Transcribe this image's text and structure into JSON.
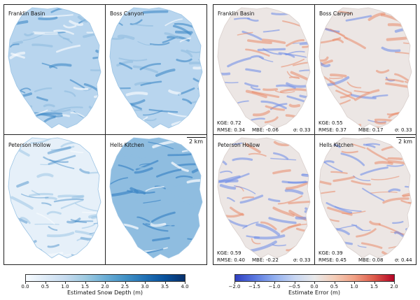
{
  "chart_data": {
    "type": "heatmap",
    "layout": "two groups of 2x2 raster map panels",
    "groups": [
      {
        "name": "depth",
        "panels": [
          {
            "title": "Franklin Basin"
          },
          {
            "title": "Boss Canyon"
          },
          {
            "title": "Peterson Hollow"
          },
          {
            "title": "Hells Kitchen"
          }
        ],
        "scale_label": "2 km",
        "colorbar": {
          "label": "Estimated Snow Depth (m)",
          "range": [
            0.0,
            4.0
          ],
          "ticks": [
            "0.0",
            "0.5",
            "1.0",
            "1.5",
            "2.0",
            "2.5",
            "3.0",
            "3.5",
            "4.0"
          ],
          "colors": [
            "#f7fbff",
            "#deebf7",
            "#c6dbef",
            "#9ecae1",
            "#6baed6",
            "#4292c6",
            "#2171b5",
            "#08519c",
            "#08306b"
          ]
        },
        "colors": {
          "light": "#e6f0f9",
          "mid": "#8fbde0",
          "dark": "#3e88c6",
          "accent": "#2a6fb0"
        }
      },
      {
        "name": "error",
        "panels": [
          {
            "title": "Franklin Basin",
            "kge": "KGE: 0.72",
            "rmse": "RMSE: 0.34",
            "mbe": "MBE: -0.06",
            "sigma": "σ: 0.33"
          },
          {
            "title": "Boss Canyon",
            "kge": "KGE: 0.55",
            "rmse": "RMSE: 0.37",
            "mbe": "MBE: 0.17",
            "sigma": "σ: 0.33"
          },
          {
            "title": "Peterson Hollow",
            "kge": "KGE: 0.59",
            "rmse": "RMSE: 0.40",
            "mbe": "MBE: -0.22",
            "sigma": "σ: 0.33"
          },
          {
            "title": "Hells Kitchen",
            "kge": "KGE: 0.39",
            "rmse": "RMSE: 0.45",
            "mbe": "MBE: 0.08",
            "sigma": "σ: 0.44"
          }
        ],
        "scale_label": "2 km",
        "colorbar": {
          "label": "Estimate Error (m)",
          "range": [
            -2.0,
            2.0
          ],
          "ticks": [
            "−2.0",
            "−1.5",
            "−1.0",
            "−0.5",
            "0.0",
            "0.5",
            "1.0",
            "1.5",
            "2.0"
          ],
          "colors": [
            "#2f3fc0",
            "#5a78e0",
            "#93b0f0",
            "#c8d6f2",
            "#e9e9ea",
            "#f4cdb8",
            "#f1a084",
            "#dd5a4a",
            "#b40426"
          ]
        },
        "colors": {
          "blue": "#6a88e8",
          "red": "#ea8a6a",
          "neutral": "#ece6e4"
        }
      }
    ]
  }
}
